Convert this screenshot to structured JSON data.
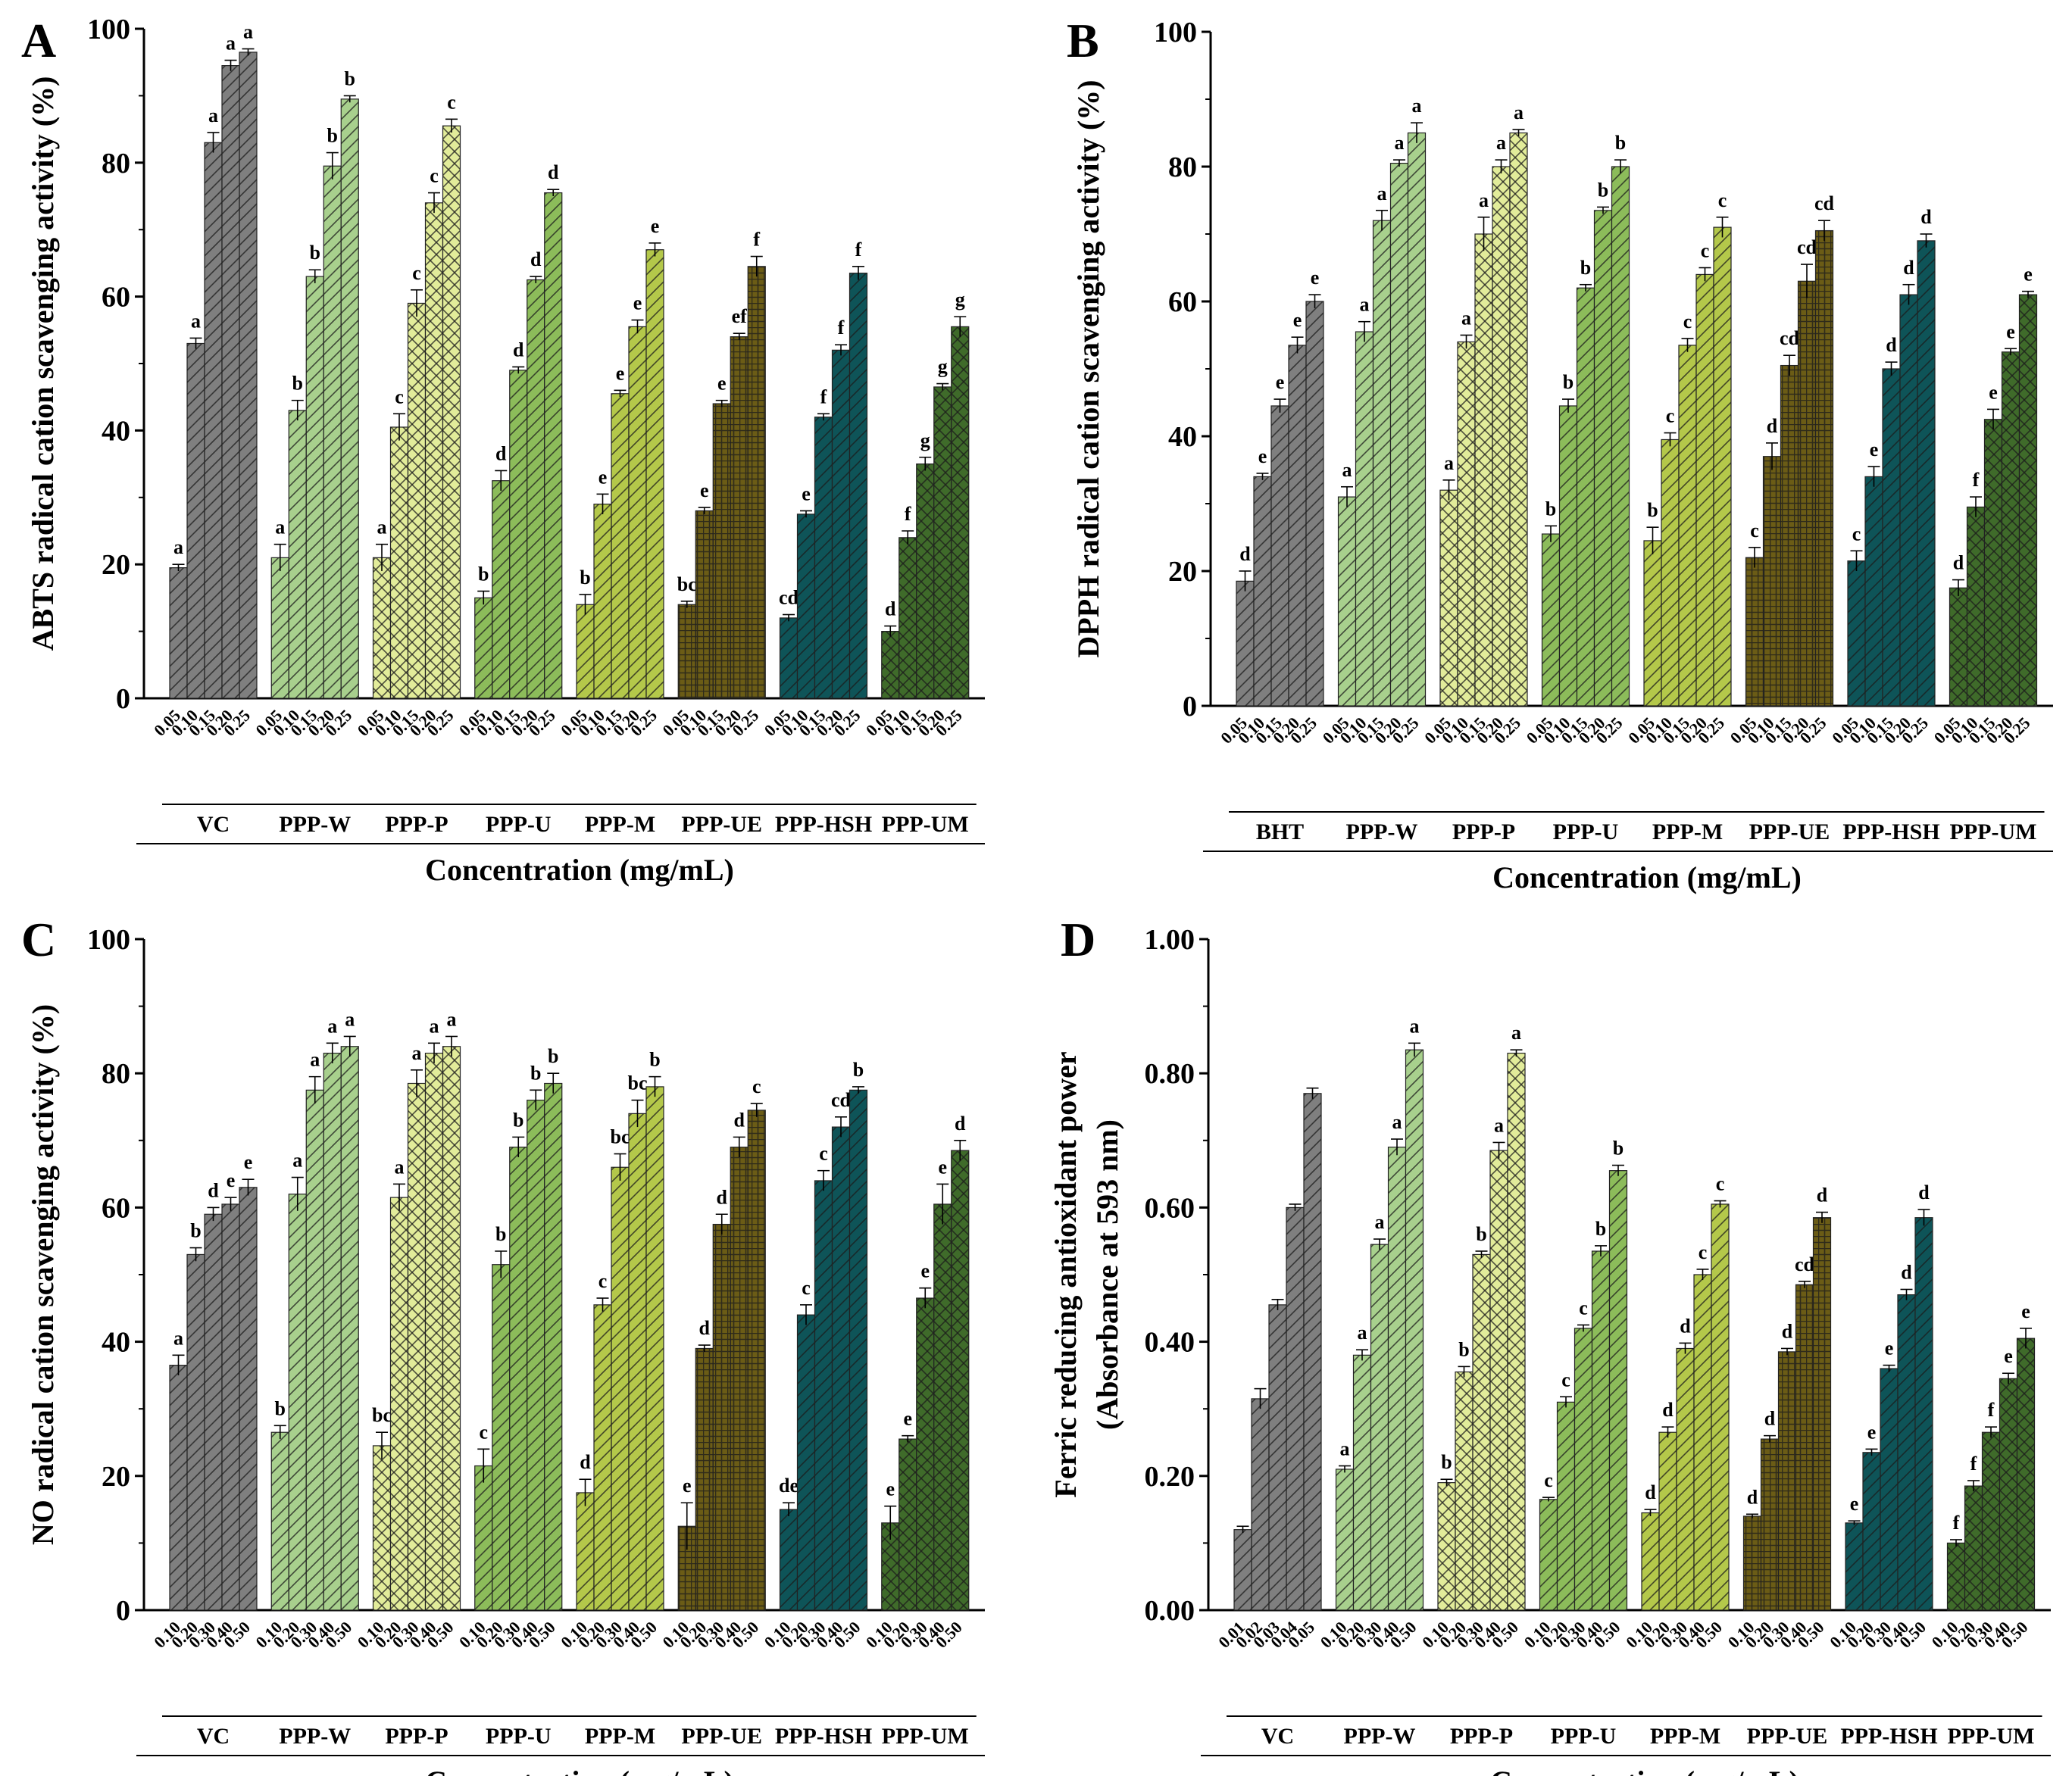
{
  "figure": {
    "colors": {
      "VC": "#7f7f7f",
      "BHT": "#7f7f7f",
      "PPP-W": "#a8d08d",
      "PPP-P": "#e2ec9a",
      "PPP-U": "#8cbc5a",
      "PPP-M": "#b4c84a",
      "PPP-UE": "#6b5c16",
      "PPP-HSH": "#0e5458",
      "PPP-UM": "#3f6b2a"
    }
  },
  "chart_data": [
    {
      "panel": "A",
      "type": "bar",
      "ylabel": "ABTS radical cation scavenging activity (%)",
      "xlabel": "Concentration (mg/mL)",
      "ylim": [
        0,
        100
      ],
      "yticks": [
        "0",
        "20",
        "40",
        "60",
        "80",
        "100"
      ],
      "categories": [
        "0.05",
        "0.10",
        "0.15",
        "0.20",
        "0.25"
      ],
      "groups": [
        {
          "name": "VC",
          "values": [
            19.5,
            53,
            83,
            94.5,
            96.5
          ],
          "errors": [
            0.5,
            0.8,
            1.5,
            0.8,
            0.5
          ],
          "letters": [
            "a",
            "a",
            "a",
            "a",
            "a"
          ]
        },
        {
          "name": "PPP-W",
          "values": [
            21,
            43,
            63,
            79.5,
            89.5
          ],
          "errors": [
            2,
            1.5,
            1,
            2,
            0.5
          ],
          "letters": [
            "a",
            "b",
            "b",
            "b",
            "b"
          ]
        },
        {
          "name": "PPP-P",
          "values": [
            21,
            40.5,
            59,
            74,
            85.5
          ],
          "errors": [
            2,
            2,
            2,
            1.5,
            1
          ],
          "letters": [
            "a",
            "c",
            "c",
            "c",
            "c"
          ]
        },
        {
          "name": "PPP-U",
          "values": [
            15,
            32.5,
            49,
            62.5,
            75.5
          ],
          "errors": [
            1,
            1.5,
            0.5,
            0.5,
            0.5
          ],
          "letters": [
            "b",
            "d",
            "d",
            "d",
            "d"
          ]
        },
        {
          "name": "PPP-M",
          "values": [
            14,
            29,
            45.5,
            55.5,
            67
          ],
          "errors": [
            1.5,
            1.5,
            0.5,
            1,
            1
          ],
          "letters": [
            "b",
            "e",
            "e",
            "e",
            "e"
          ]
        },
        {
          "name": "PPP-UE",
          "values": [
            14,
            28,
            44,
            54,
            64.5
          ],
          "errors": [
            0.5,
            0.5,
            0.5,
            0.5,
            1.5
          ],
          "letters": [
            "bc",
            "e",
            "e",
            "ef",
            "f"
          ]
        },
        {
          "name": "PPP-HSH",
          "values": [
            12,
            27.5,
            42,
            52,
            63.5
          ],
          "errors": [
            0.5,
            0.5,
            0.5,
            0.8,
            1
          ],
          "letters": [
            "cd",
            "e",
            "f",
            "f",
            "f"
          ]
        },
        {
          "name": "PPP-UM",
          "values": [
            10,
            24,
            35,
            46.5,
            55.5
          ],
          "errors": [
            0.8,
            1,
            1,
            0.5,
            1.5
          ],
          "letters": [
            "d",
            "f",
            "g",
            "g",
            "g"
          ]
        }
      ]
    },
    {
      "panel": "B",
      "type": "bar",
      "ylabel": "DPPH radical cation scavenging activity (%)",
      "xlabel": "Concentration (mg/mL)",
      "ylim": [
        0,
        100
      ],
      "yticks": [
        "0",
        "20",
        "40",
        "60",
        "80",
        "100"
      ],
      "categories": [
        "0.05",
        "0.10",
        "0.15",
        "0.20",
        "0.25"
      ],
      "groups": [
        {
          "name": "BHT",
          "values": [
            18.5,
            34,
            44.5,
            53.5,
            60
          ],
          "errors": [
            1.5,
            0.5,
            1,
            1.2,
            1
          ],
          "letters": [
            "d",
            "e",
            "e",
            "e",
            "e"
          ]
        },
        {
          "name": "PPP-W",
          "values": [
            31,
            55.5,
            72,
            80.5,
            85
          ],
          "errors": [
            1.5,
            1.5,
            1.5,
            0.5,
            1.5
          ],
          "letters": [
            "a",
            "a",
            "a",
            "a",
            "a"
          ]
        },
        {
          "name": "PPP-P",
          "values": [
            32,
            54,
            70,
            80,
            85
          ],
          "errors": [
            1.5,
            1,
            2.5,
            1,
            0.5
          ],
          "letters": [
            "a",
            "a",
            "a",
            "a",
            "a"
          ]
        },
        {
          "name": "PPP-U",
          "values": [
            25.5,
            44.5,
            62,
            73.5,
            80
          ],
          "errors": [
            1.2,
            1,
            0.5,
            0.5,
            1
          ],
          "letters": [
            "b",
            "b",
            "b",
            "b",
            "b"
          ]
        },
        {
          "name": "PPP-M",
          "values": [
            24.5,
            39.5,
            53.5,
            64,
            71
          ],
          "errors": [
            2,
            1,
            1,
            1,
            1.5
          ],
          "letters": [
            "b",
            "c",
            "c",
            "c",
            "c"
          ]
        },
        {
          "name": "PPP-UE",
          "values": [
            22,
            37,
            50.5,
            63,
            70.5
          ],
          "errors": [
            1.5,
            2,
            1.5,
            2.5,
            1.5
          ],
          "letters": [
            "c",
            "d",
            "cd",
            "cd",
            "cd"
          ]
        },
        {
          "name": "PPP-HSH",
          "values": [
            21.5,
            34,
            50,
            61,
            69
          ],
          "errors": [
            1.5,
            1.5,
            1,
            1.5,
            1
          ],
          "letters": [
            "c",
            "e",
            "d",
            "d",
            "d"
          ]
        },
        {
          "name": "PPP-UM",
          "values": [
            17.5,
            29.5,
            42.5,
            52.5,
            61
          ],
          "errors": [
            1.2,
            1.5,
            1.5,
            0.5,
            0.5
          ],
          "letters": [
            "d",
            "f",
            "e",
            "e",
            "e"
          ]
        }
      ]
    },
    {
      "panel": "C",
      "type": "bar",
      "ylabel": "NO radical cation scavenging activity (%)",
      "xlabel": "Concentration (mg/mL)",
      "ylim": [
        0,
        100
      ],
      "yticks": [
        "0",
        "20",
        "40",
        "60",
        "80",
        "100"
      ],
      "categories": [
        "0.10",
        "0.20",
        "0.30",
        "0.40",
        "0.50"
      ],
      "groups": [
        {
          "name": "VC",
          "values": [
            36.5,
            53,
            59,
            60.5,
            63
          ],
          "errors": [
            1.5,
            1,
            1,
            1,
            1.2
          ],
          "letters": [
            "a",
            "b",
            "d",
            "e",
            "e"
          ]
        },
        {
          "name": "PPP-W",
          "values": [
            26.5,
            62,
            77.5,
            83,
            84
          ],
          "errors": [
            1,
            2.5,
            2,
            1.5,
            1.5
          ],
          "letters": [
            "b",
            "a",
            "a",
            "a",
            "a"
          ]
        },
        {
          "name": "PPP-P",
          "values": [
            24.5,
            61.5,
            78.5,
            83,
            84
          ],
          "errors": [
            2,
            2,
            2,
            1.5,
            1.5
          ],
          "letters": [
            "bc",
            "a",
            "a",
            "a",
            "a"
          ]
        },
        {
          "name": "PPP-U",
          "values": [
            21.5,
            51.5,
            69,
            76,
            78.5
          ],
          "errors": [
            2.5,
            2,
            1.5,
            1.5,
            1.5
          ],
          "letters": [
            "c",
            "b",
            "b",
            "b",
            "b"
          ]
        },
        {
          "name": "PPP-M",
          "values": [
            17.5,
            45.5,
            66,
            74,
            78
          ],
          "errors": [
            2,
            1,
            2,
            2,
            1.5
          ],
          "letters": [
            "d",
            "c",
            "bc",
            "bc",
            "b"
          ]
        },
        {
          "name": "PPP-UE",
          "values": [
            12.5,
            39,
            57.5,
            69,
            74.5
          ],
          "errors": [
            3.5,
            0.5,
            1.5,
            1.5,
            1
          ],
          "letters": [
            "e",
            "d",
            "d",
            "d",
            "c"
          ]
        },
        {
          "name": "PPP-HSH",
          "values": [
            15,
            44,
            64,
            72,
            77.5
          ],
          "errors": [
            1,
            1.5,
            1.5,
            1.5,
            0.5
          ],
          "letters": [
            "de",
            "c",
            "c",
            "cd",
            "b"
          ]
        },
        {
          "name": "PPP-UM",
          "values": [
            13,
            25.5,
            46.5,
            60.5,
            68.5
          ],
          "errors": [
            2.5,
            0.5,
            1.5,
            3,
            1.5
          ],
          "letters": [
            "e",
            "e",
            "e",
            "e",
            "d"
          ]
        }
      ]
    },
    {
      "panel": "D",
      "type": "bar",
      "ylabel": "Ferric reducing antioxidant power",
      "ylabel2": "(Absorbance at 593 nm)",
      "xlabel": "Concentration (mg/mL)",
      "ylim": [
        0,
        1.0
      ],
      "yticks": [
        "0.00",
        "0.20",
        "0.40",
        "0.60",
        "0.80",
        "1.00"
      ],
      "categories_vc": [
        "0.01",
        "0.02",
        "0.03",
        "0.04",
        "0.05"
      ],
      "categories": [
        "0.10",
        "0.20",
        "0.30",
        "0.40",
        "0.50"
      ],
      "groups": [
        {
          "name": "VC",
          "values": [
            0.12,
            0.315,
            0.455,
            0.6,
            0.77
          ],
          "errors": [
            0.005,
            0.015,
            0.008,
            0.005,
            0.008
          ],
          "letters": [
            "",
            "",
            "",
            "",
            ""
          ]
        },
        {
          "name": "PPP-W",
          "values": [
            0.21,
            0.38,
            0.545,
            0.69,
            0.835
          ],
          "errors": [
            0.005,
            0.008,
            0.008,
            0.012,
            0.01
          ],
          "letters": [
            "a",
            "a",
            "a",
            "a",
            "a"
          ]
        },
        {
          "name": "PPP-P",
          "values": [
            0.19,
            0.355,
            0.53,
            0.685,
            0.83
          ],
          "errors": [
            0.005,
            0.008,
            0.005,
            0.012,
            0.005
          ],
          "letters": [
            "b",
            "b",
            "b",
            "a",
            "a"
          ]
        },
        {
          "name": "PPP-U",
          "values": [
            0.165,
            0.31,
            0.42,
            0.535,
            0.655
          ],
          "errors": [
            0.003,
            0.008,
            0.005,
            0.008,
            0.008
          ],
          "letters": [
            "c",
            "c",
            "c",
            "b",
            "b"
          ]
        },
        {
          "name": "PPP-M",
          "values": [
            0.145,
            0.265,
            0.39,
            0.5,
            0.605
          ],
          "errors": [
            0.005,
            0.008,
            0.008,
            0.008,
            0.005
          ],
          "letters": [
            "d",
            "d",
            "d",
            "c",
            "c"
          ]
        },
        {
          "name": "PPP-UE",
          "values": [
            0.14,
            0.255,
            0.385,
            0.485,
            0.585
          ],
          "errors": [
            0.003,
            0.005,
            0.005,
            0.005,
            0.008
          ],
          "letters": [
            "d",
            "d",
            "d",
            "cd",
            "d"
          ]
        },
        {
          "name": "PPP-HSH",
          "values": [
            0.13,
            0.235,
            0.36,
            0.47,
            0.585
          ],
          "errors": [
            0.003,
            0.005,
            0.005,
            0.008,
            0.012
          ],
          "letters": [
            "e",
            "e",
            "e",
            "d",
            "d"
          ]
        },
        {
          "name": "PPP-UM",
          "values": [
            0.1,
            0.185,
            0.265,
            0.345,
            0.405
          ],
          "errors": [
            0.005,
            0.008,
            0.008,
            0.008,
            0.015
          ],
          "letters": [
            "f",
            "f",
            "f",
            "e",
            "e"
          ]
        }
      ]
    }
  ]
}
